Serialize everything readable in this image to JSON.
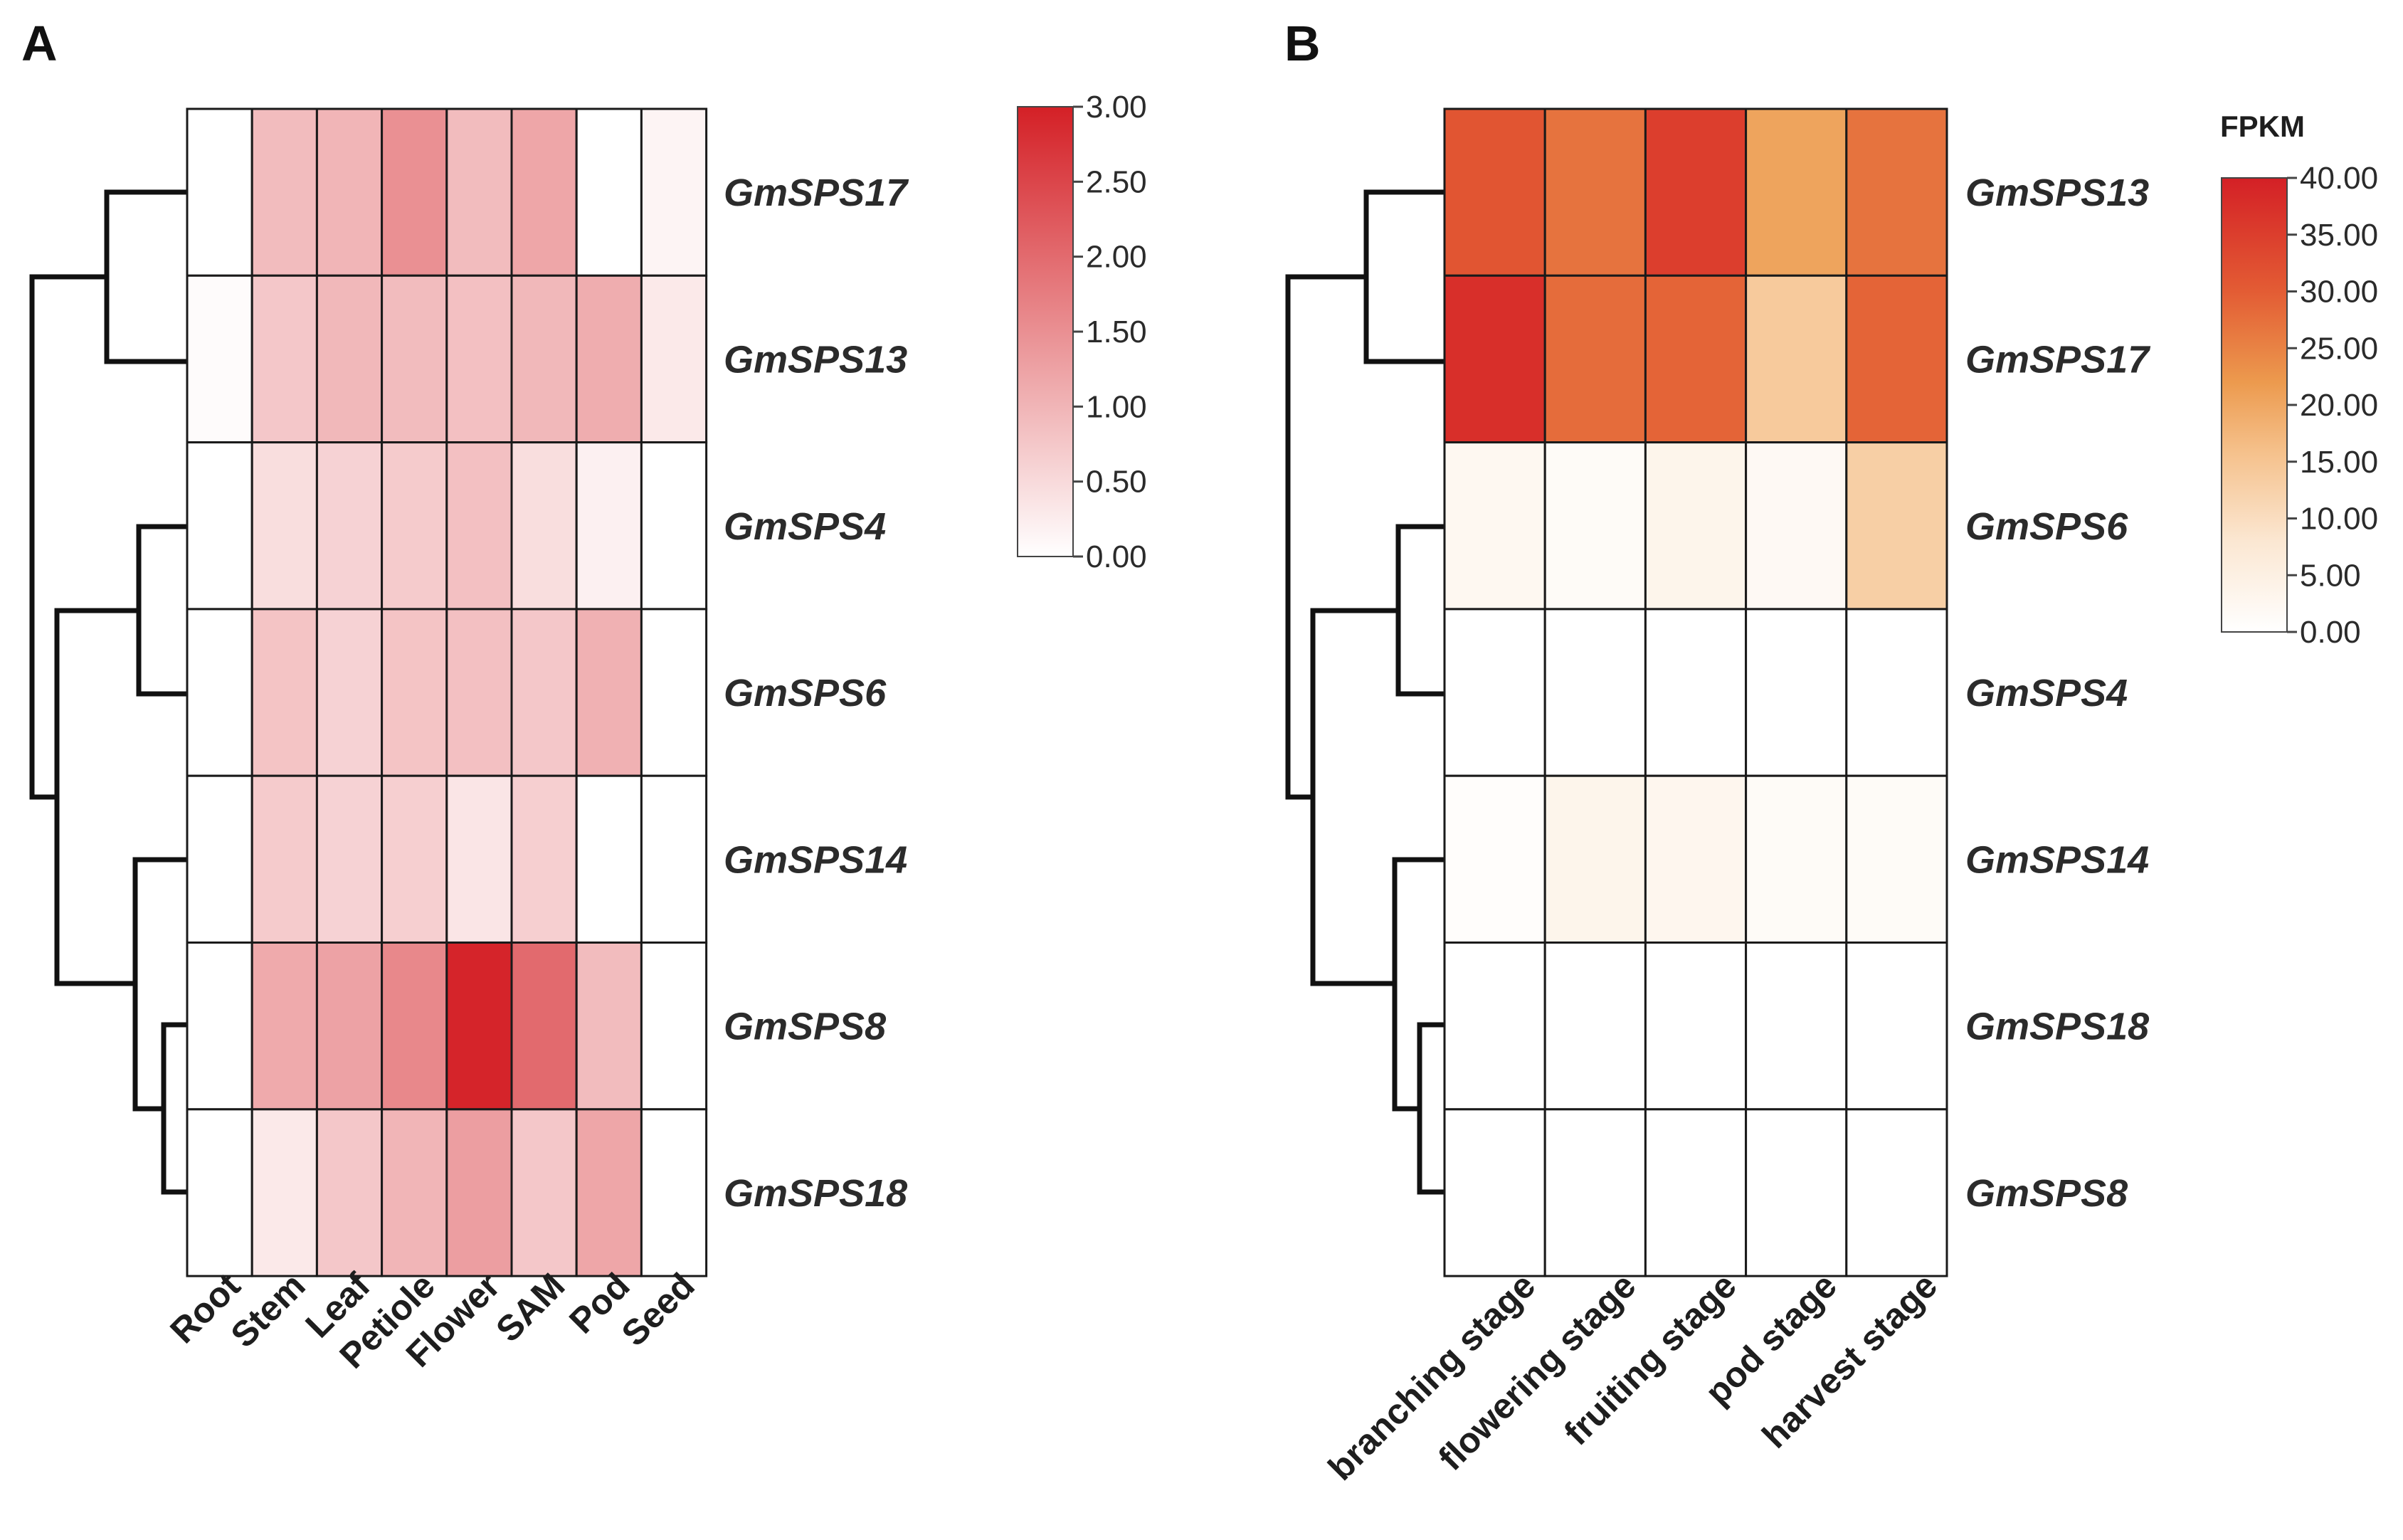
{
  "chart_data": [
    {
      "type": "heatmap",
      "panel_label": "A",
      "title": "",
      "columns": [
        "Root",
        "Stem",
        "Leaf",
        "Petiole",
        "Flower",
        "SAM",
        "Pod",
        "Seed"
      ],
      "rows": [
        "GmSPS17",
        "GmSPS13",
        "GmSPS4",
        "GmSPS6",
        "GmSPS14",
        "GmSPS8",
        "GmSPS18"
      ],
      "values": [
        [
          0.0,
          0.9,
          1.0,
          1.5,
          0.9,
          1.2,
          0.0,
          0.15
        ],
        [
          0.05,
          0.75,
          0.95,
          0.9,
          0.85,
          0.95,
          1.1,
          0.3
        ],
        [
          0.0,
          0.45,
          0.6,
          0.7,
          0.85,
          0.45,
          0.2,
          0.0
        ],
        [
          0.0,
          0.8,
          0.6,
          0.8,
          0.85,
          0.75,
          1.05,
          0.0
        ],
        [
          0.0,
          0.7,
          0.6,
          0.65,
          0.35,
          0.65,
          0.0,
          0.0
        ],
        [
          0.0,
          1.15,
          1.25,
          1.6,
          2.95,
          2.0,
          0.9,
          0.0
        ],
        [
          0.0,
          0.3,
          0.75,
          1.0,
          1.3,
          0.75,
          1.2,
          0.0
        ]
      ],
      "colorbar": {
        "title": "",
        "range": [
          0,
          3
        ],
        "ticks": [
          "3.00",
          "2.50",
          "2.00",
          "1.50",
          "1.00",
          "0.50",
          "0.00"
        ],
        "low_color": "#ffffff",
        "high_color": "#d42026"
      }
    },
    {
      "type": "heatmap",
      "panel_label": "B",
      "title": "",
      "columns": [
        "branching stage",
        "flowering stage",
        "fruiting stage",
        "pod stage",
        "harvest stage"
      ],
      "rows": [
        "GmSPS13",
        "GmSPS17",
        "GmSPS6",
        "GmSPS4",
        "GmSPS14",
        "GmSPS18",
        "GmSPS8"
      ],
      "values": [
        [
          33.0,
          29.0,
          36.0,
          22.0,
          29.0
        ],
        [
          38.0,
          30.0,
          31.0,
          14.0,
          31.0
        ],
        [
          2.5,
          1.5,
          3.5,
          2.0,
          13.0
        ],
        [
          0.0,
          0.0,
          0.0,
          0.0,
          0.0
        ],
        [
          0.8,
          3.5,
          3.0,
          1.5,
          1.5
        ],
        [
          0.0,
          0.0,
          0.0,
          0.0,
          0.0
        ],
        [
          0.0,
          0.0,
          0.0,
          0.0,
          0.0
        ]
      ],
      "colorbar": {
        "title": "FPKM",
        "range": [
          0,
          40
        ],
        "ticks": [
          "40.00",
          "35.00",
          "30.00",
          "25.00",
          "20.00",
          "15.00",
          "10.00",
          "5.00",
          "0.00"
        ],
        "stops": [
          "#ffffff",
          "#fbe7d2",
          "#f5c08a",
          "#ec9a4e",
          "#e35c34",
          "#d42026"
        ]
      }
    }
  ]
}
